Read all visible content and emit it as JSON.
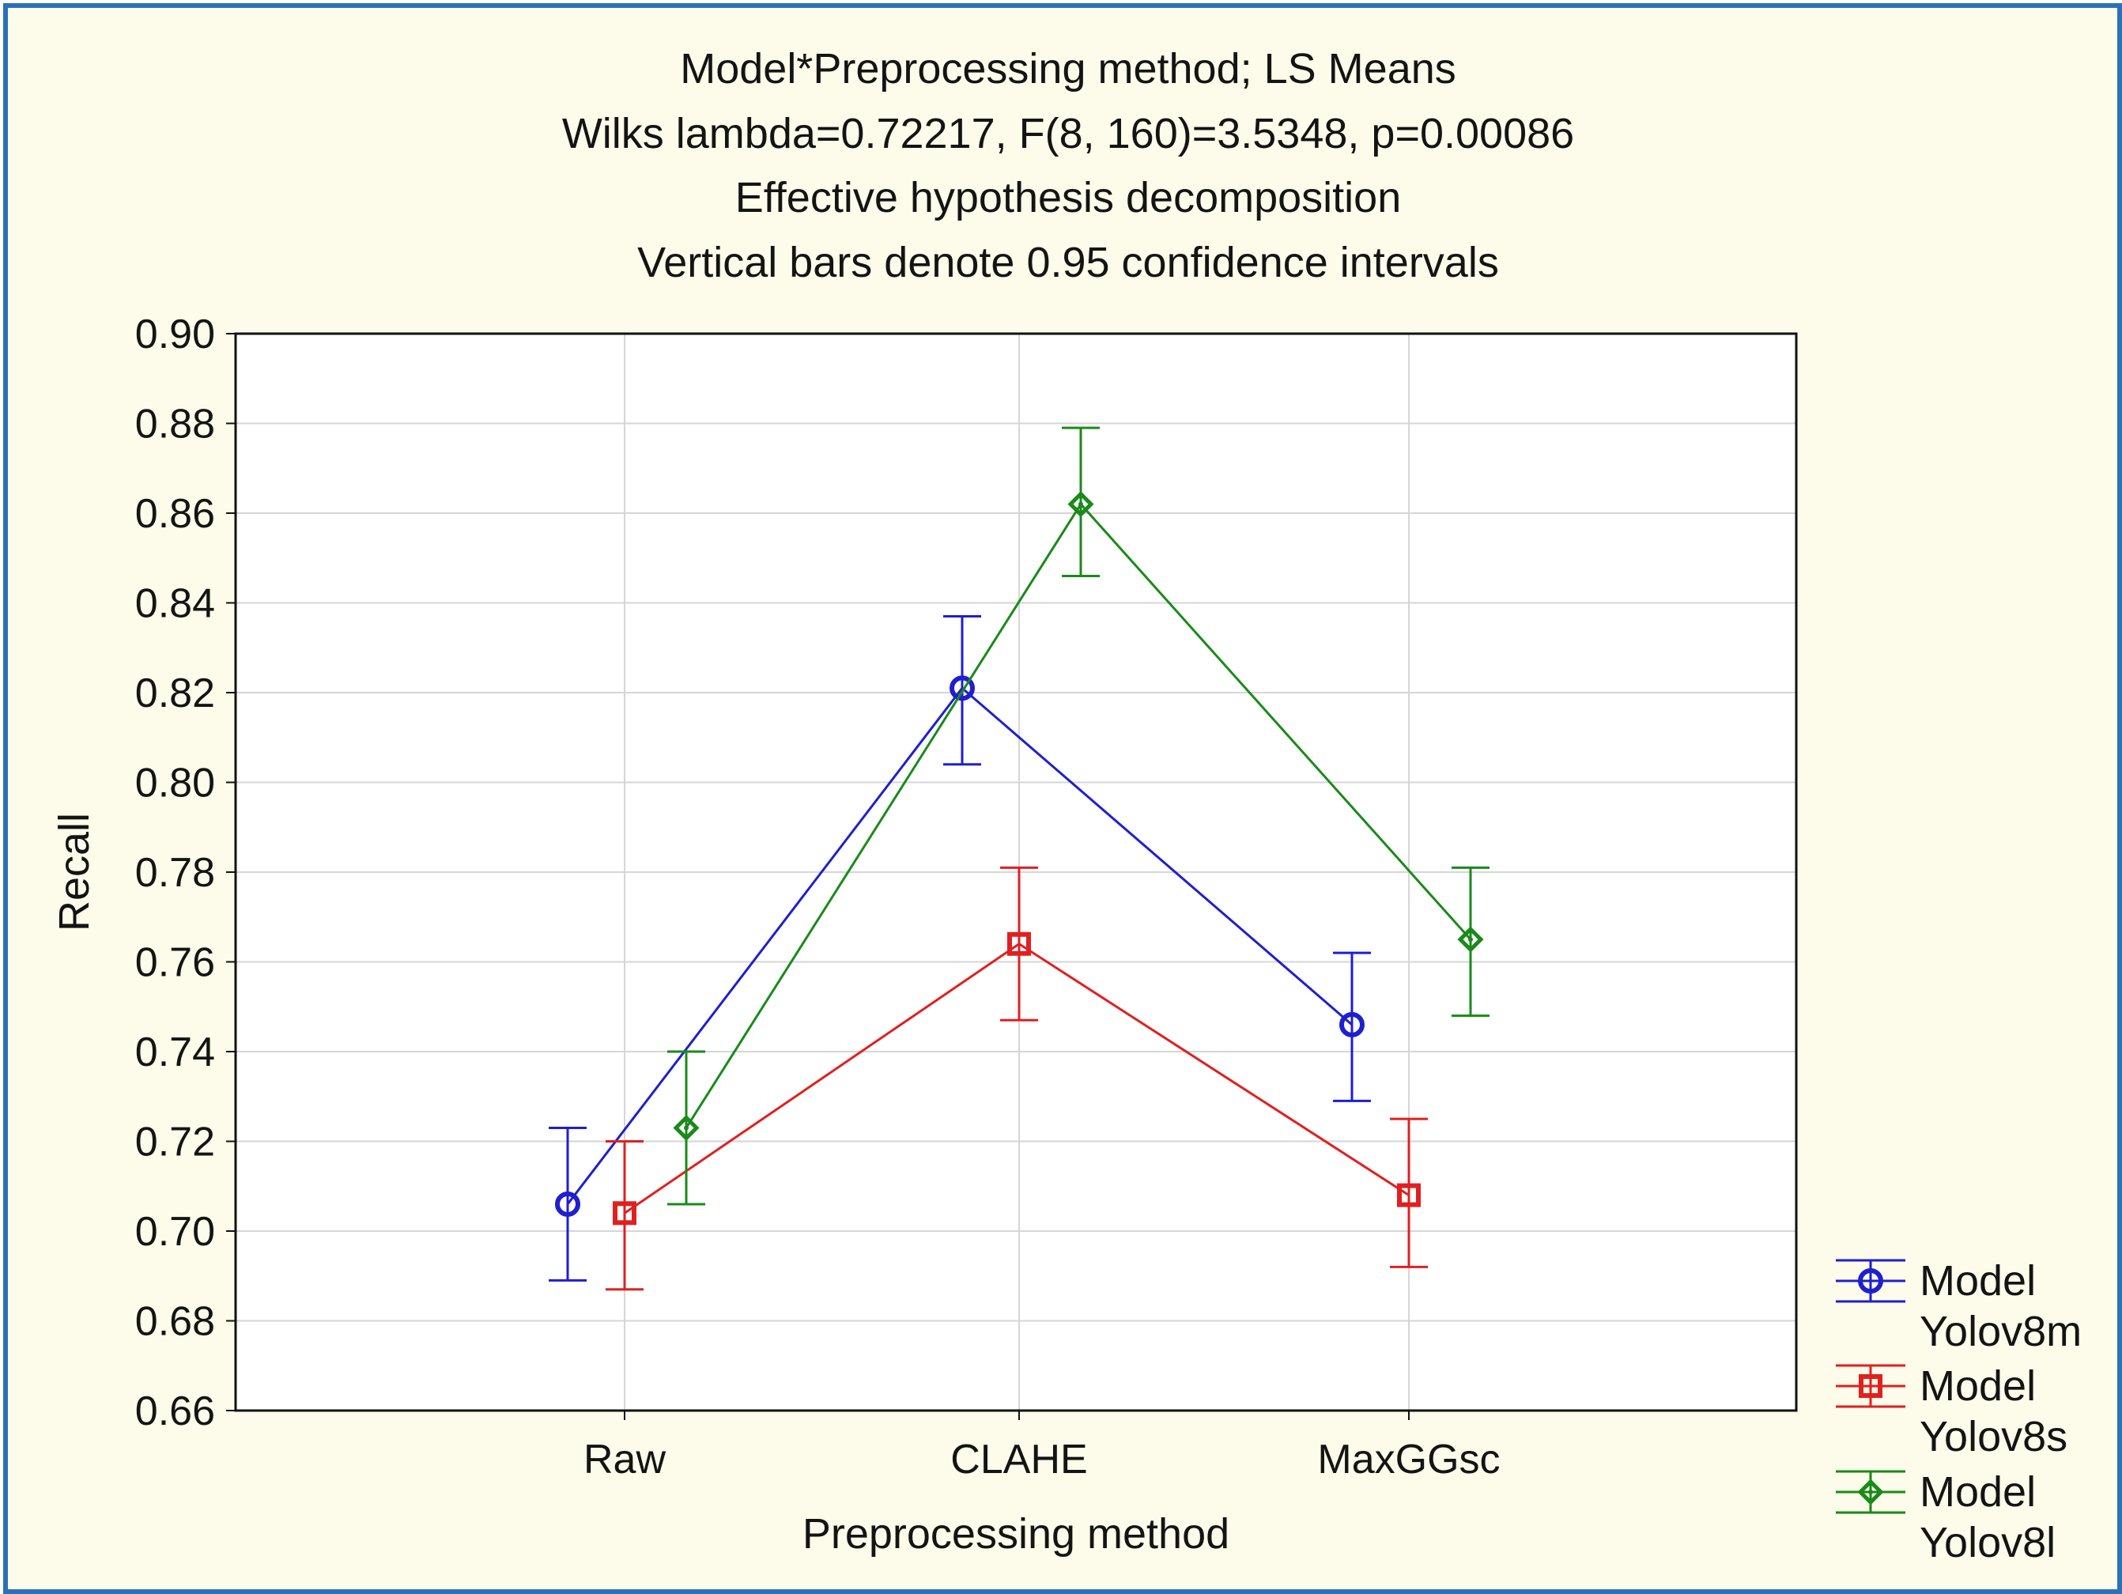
{
  "chart_data": {
    "type": "line",
    "title_lines": [
      "Model*Preprocessing method; LS Means",
      "Wilks lambda=0.72217, F(8, 160)=3.5348, p=0.00086",
      "Effective hypothesis decomposition",
      "Vertical bars denote 0.95 confidence intervals"
    ],
    "xlabel": "Preprocessing method",
    "ylabel": "Recall",
    "categories": [
      "Raw",
      "CLAHE",
      "MaxGGsc"
    ],
    "ylim": [
      0.66,
      0.9
    ],
    "yticks": [
      "0.66",
      "0.68",
      "0.70",
      "0.72",
      "0.74",
      "0.76",
      "0.78",
      "0.80",
      "0.82",
      "0.84",
      "0.86",
      "0.88",
      "0.90"
    ],
    "grid": true,
    "legend_position": "bottom-right, outside plot",
    "series": [
      {
        "name": "Model Yolov8m",
        "legend_line1": "Model",
        "legend_line2": "Yolov8m",
        "color": "#1f1fd0",
        "marker": "circle",
        "values": [
          0.706,
          0.821,
          0.746
        ],
        "ci_low": [
          0.689,
          0.804,
          0.729
        ],
        "ci_high": [
          0.723,
          0.837,
          0.762
        ]
      },
      {
        "name": "Model Yolov8s",
        "legend_line1": "Model",
        "legend_line2": "Yolov8s",
        "color": "#e02020",
        "marker": "square",
        "values": [
          0.704,
          0.764,
          0.708
        ],
        "ci_low": [
          0.687,
          0.747,
          0.692
        ],
        "ci_high": [
          0.72,
          0.781,
          0.725
        ]
      },
      {
        "name": "Model Yolov8l",
        "legend_line1": "Model",
        "legend_line2": "Yolov8l",
        "color": "#1a8a1a",
        "marker": "diamond",
        "values": [
          0.723,
          0.862,
          0.765
        ],
        "ci_low": [
          0.706,
          0.846,
          0.748
        ],
        "ci_high": [
          0.74,
          0.879,
          0.781
        ]
      }
    ]
  }
}
